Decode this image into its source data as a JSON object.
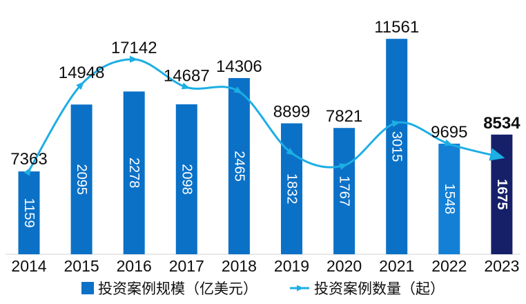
{
  "chart_data": {
    "type": "combo-bar-line",
    "categories": [
      "2014",
      "2015",
      "2016",
      "2017",
      "2018",
      "2019",
      "2020",
      "2021",
      "2022",
      "2023"
    ],
    "series": [
      {
        "name": "投资案例规模（亿美元）",
        "type": "bar",
        "values": [
          1159,
          2095,
          2278,
          2098,
          2465,
          1832,
          1767,
          3015,
          1548,
          1675
        ],
        "color": "#0B71C7",
        "point_colors": {
          "2022": "#1380D6",
          "2023": "#162069"
        },
        "label_color": "#FFFFFF",
        "label_position": "inside-center-rotated"
      },
      {
        "name": "投资案例数量（起）",
        "type": "line",
        "smooth": true,
        "values": [
          7363,
          14948,
          17142,
          14687,
          14306,
          8899,
          7821,
          11561,
          9695,
          8534
        ],
        "color": "#1CAEE4",
        "label_color": "#0d0d0d",
        "marker": "triangle-along-path",
        "end_marker": "arrow"
      }
    ],
    "bar_ylim": [
      0,
      3500
    ],
    "line_ylim": [
      0,
      22000
    ],
    "highlight_category": "2023",
    "grid": false,
    "legend_position": "bottom",
    "axis_line_color": "#D9D9D9",
    "text_color": "#0d0d0d",
    "background": "#FFFFFF"
  }
}
